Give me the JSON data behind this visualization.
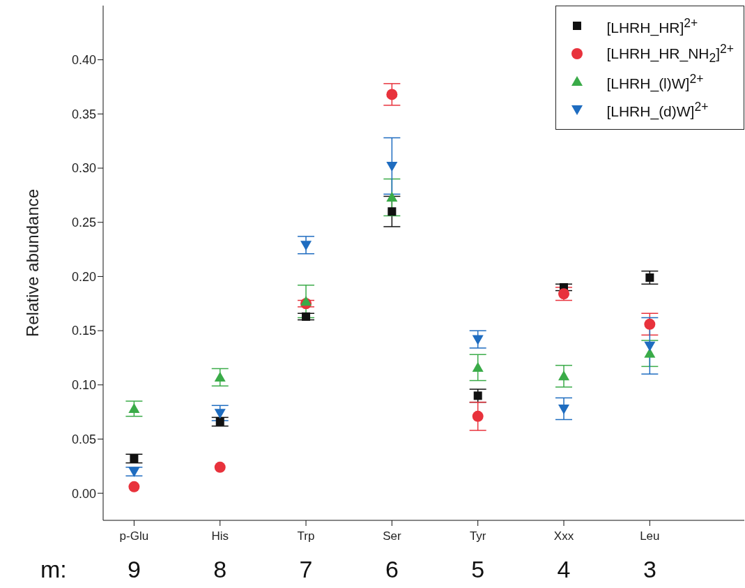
{
  "chart_data": {
    "type": "scatter",
    "ylabel": "Relative abundance",
    "categories": [
      "p-Glu",
      "His",
      "Trp",
      "Ser",
      "Tyr",
      "Xxx",
      "Leu"
    ],
    "series": [
      {
        "name": "[LHRH_HR]$^{2+}$",
        "color": "#111111",
        "marker": "square",
        "values": [
          0.032,
          0.066,
          0.163,
          0.26,
          0.09,
          0.19,
          0.199
        ],
        "errors": [
          0.004,
          0.004,
          0.003,
          0.014,
          0.006,
          0.003,
          0.006
        ]
      },
      {
        "name": "[LHRH_HR_NH$_{2}$]$^{2+}$",
        "color": "#e8323c",
        "marker": "circle",
        "values": [
          0.006,
          0.024,
          0.175,
          0.368,
          0.071,
          0.184,
          0.156
        ],
        "errors": [
          null,
          null,
          0.003,
          0.01,
          0.013,
          0.006,
          0.01
        ]
      },
      {
        "name": "[LHRH_(l)W]$^{2+}$",
        "color": "#3aab48",
        "marker": "triangle",
        "values": [
          0.078,
          0.107,
          0.177,
          0.273,
          0.116,
          0.108,
          0.129
        ],
        "errors": [
          0.007,
          0.008,
          0.015,
          0.017,
          0.012,
          0.01,
          0.012
        ]
      },
      {
        "name": "[LHRH_(d)W]$^{2+}$",
        "color": "#1e6cc0",
        "marker": "triangle-down",
        "values": [
          0.02,
          0.074,
          0.229,
          0.302,
          0.142,
          0.078,
          0.136
        ],
        "errors": [
          0.004,
          0.007,
          0.008,
          0.026,
          0.008,
          0.01,
          0.026
        ]
      }
    ],
    "ylim": [
      -0.025,
      0.45
    ],
    "yticks": [
      {
        "value": 0,
        "label": "0.00"
      },
      0.05,
      {
        "value": 0.1,
        "label": "0.10"
      },
      0.15,
      {
        "value": 0.2,
        "label": "0.20"
      },
      0.25,
      {
        "value": 0.3,
        "label": "0.30"
      },
      0.35,
      {
        "value": 0.4,
        "label": "0.40"
      }
    ],
    "annotations": [
      "m:",
      "9",
      "8",
      "7",
      "6",
      "5",
      "4",
      "3"
    ],
    "grid": false,
    "legend": "top right"
  }
}
